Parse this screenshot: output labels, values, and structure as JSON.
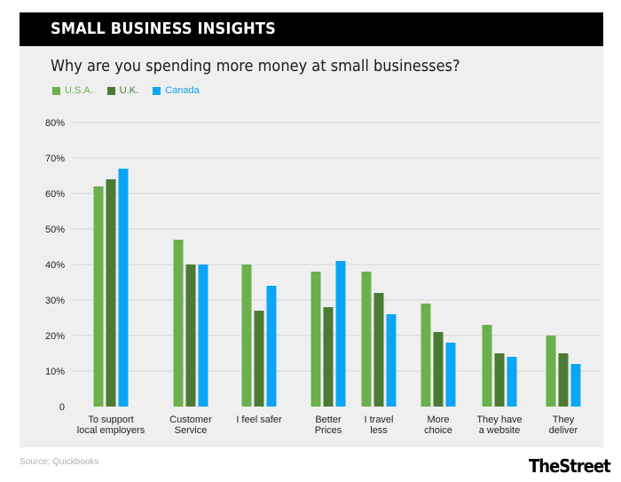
{
  "header": {
    "title": "SMALL BUSINESS INSIGHTS"
  },
  "source": "Source: Quickbooks",
  "logo": "TheStreet",
  "colors": {
    "usa": "#6ab04c",
    "uk": "#4b7a35",
    "canada": "#0aa6f5",
    "grid": "#d6d6d6",
    "axis_text": "#222222"
  },
  "chart_data": {
    "type": "bar",
    "title": "Why are you spending more money at small businesses?",
    "xlabel": "",
    "ylabel": "",
    "ylim": [
      0,
      80
    ],
    "y_ticks": [
      0,
      10,
      20,
      30,
      40,
      50,
      60,
      70,
      80
    ],
    "y_tick_labels": [
      "0",
      "10%",
      "20%",
      "30%",
      "40%",
      "50%",
      "60%",
      "70%",
      "80%"
    ],
    "legend_position": "top-left",
    "categories": [
      [
        "To support",
        "local employers"
      ],
      [
        "Customer",
        "Service"
      ],
      [
        "I feel safer"
      ],
      [
        "Better",
        "Prices"
      ],
      [
        "I travel",
        "less"
      ],
      [
        "More",
        "choice"
      ],
      [
        "They have",
        "a website"
      ],
      [
        "They",
        "deliver"
      ]
    ],
    "series": [
      {
        "name": "U.S.A.",
        "color": "#6ab04c",
        "values": [
          62,
          47,
          40,
          38,
          38,
          29,
          23,
          20
        ]
      },
      {
        "name": "U.K.",
        "color": "#4b7a35",
        "values": [
          64,
          40,
          27,
          28,
          32,
          21,
          15,
          15
        ]
      },
      {
        "name": "Canada",
        "color": "#0aa6f5",
        "values": [
          67,
          40,
          34,
          41,
          26,
          18,
          14,
          12
        ]
      }
    ]
  }
}
